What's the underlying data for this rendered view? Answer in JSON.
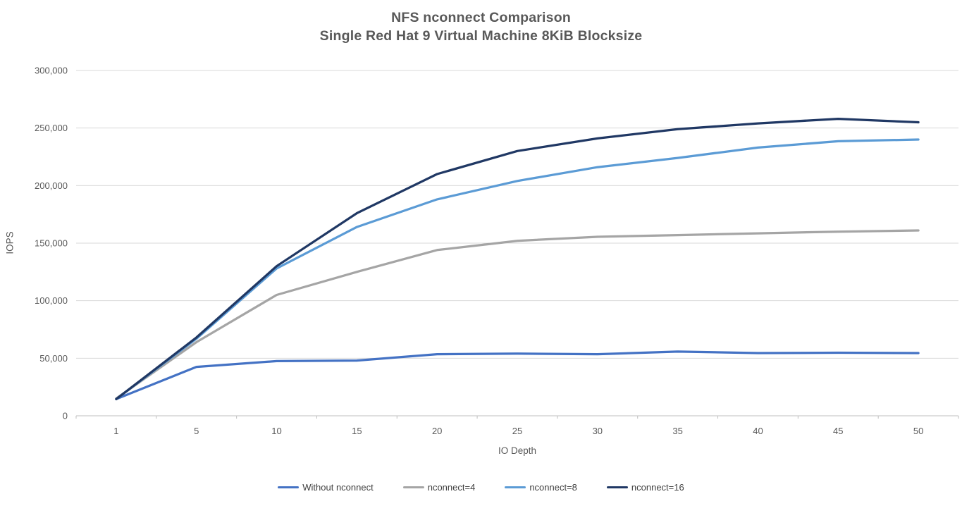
{
  "title": {
    "line1": "NFS nconnect Comparison",
    "line2": "Single Red Hat 9 Virtual Machine 8KiB Blocksize"
  },
  "chart_data": {
    "type": "line",
    "x": [
      1,
      5,
      10,
      15,
      20,
      25,
      30,
      35,
      40,
      45,
      50
    ],
    "series": [
      {
        "name": "Without nconnect",
        "color": "#4472C4",
        "values": [
          14500,
          42500,
          47500,
          48000,
          53500,
          54000,
          53500,
          55800,
          54500,
          54800,
          54500
        ]
      },
      {
        "name": "nconnect=4",
        "color": "#A5A5A5",
        "values": [
          15000,
          64000,
          105000,
          125000,
          144000,
          152000,
          155500,
          157000,
          158500,
          160000,
          161000
        ]
      },
      {
        "name": "nconnect=8",
        "color": "#5B9BD5",
        "values": [
          14500,
          67000,
          128000,
          164000,
          188000,
          204000,
          216000,
          224000,
          233000,
          238500,
          240000
        ]
      },
      {
        "name": "nconnect=16",
        "color": "#203864",
        "values": [
          14500,
          68000,
          130000,
          176000,
          210000,
          230000,
          241000,
          249000,
          254000,
          258000,
          255000
        ]
      }
    ],
    "xlabel": "IO Depth",
    "ylabel": "IOPS",
    "ylim": [
      0,
      300000
    ],
    "ytick_step": 50000,
    "ytick_labels": [
      "0",
      "50,000",
      "100,000",
      "150,000",
      "200,000",
      "250,000",
      "300,000"
    ],
    "grid": "horizontal",
    "legend_position": "bottom",
    "colors": {
      "grid": "#D9D9D9",
      "axis": "#BFBFBF",
      "tick_text": "#595959"
    }
  }
}
